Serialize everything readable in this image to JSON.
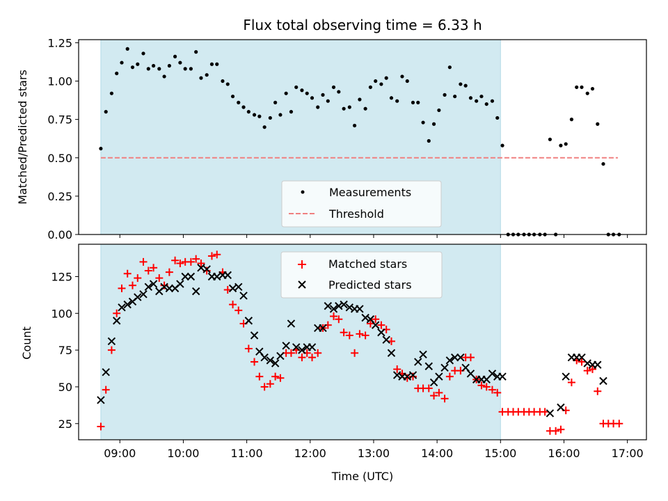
{
  "title": "Flux total observing time = 6.33 h",
  "colors": {
    "shade": "#add8e6",
    "threshold": "#f08080",
    "measurements": "#000000",
    "matched": "#ff0000",
    "predicted": "#000000"
  },
  "chart_data": [
    {
      "type": "scatter",
      "title": "Flux total observing time = 6.33 h",
      "xlabel": "",
      "ylabel": "Matched/Predicted stars",
      "x_unit": "hours UTC",
      "xlim": [
        8.35,
        17.3
      ],
      "ylim": [
        0,
        1.27
      ],
      "yticks": [
        0.0,
        0.25,
        0.5,
        0.75,
        1.0,
        1.25
      ],
      "ytick_labels": [
        "0.00",
        "0.25",
        "0.50",
        "0.75",
        "1.00",
        "1.25"
      ],
      "xticks": [
        9,
        10,
        11,
        12,
        13,
        14,
        15,
        16,
        17
      ],
      "shaded_span": [
        8.7,
        15.0
      ],
      "legend": {
        "position": "lower center",
        "entries": [
          "Measurements",
          "Threshold"
        ]
      },
      "threshold": {
        "name": "Threshold",
        "x": [
          8.7,
          16.85
        ],
        "y": 0.5
      },
      "series": [
        {
          "name": "Measurements",
          "x": [
            8.7,
            8.78,
            8.87,
            8.95,
            9.03,
            9.12,
            9.2,
            9.28,
            9.37,
            9.45,
            9.53,
            9.62,
            9.7,
            9.78,
            9.87,
            9.95,
            10.03,
            10.12,
            10.2,
            10.28,
            10.37,
            10.45,
            10.53,
            10.62,
            10.7,
            10.78,
            10.87,
            10.95,
            11.03,
            11.12,
            11.2,
            11.28,
            11.37,
            11.45,
            11.53,
            11.62,
            11.7,
            11.78,
            11.87,
            11.95,
            12.03,
            12.12,
            12.2,
            12.28,
            12.37,
            12.45,
            12.53,
            12.62,
            12.7,
            12.78,
            12.87,
            12.95,
            13.03,
            13.12,
            13.2,
            13.28,
            13.37,
            13.45,
            13.53,
            13.62,
            13.7,
            13.78,
            13.87,
            13.95,
            14.03,
            14.12,
            14.2,
            14.28,
            14.37,
            14.45,
            14.53,
            14.62,
            14.7,
            14.78,
            14.87,
            14.95,
            15.03,
            15.12,
            15.2,
            15.28,
            15.37,
            15.45,
            15.53,
            15.62,
            15.7,
            15.78,
            15.87,
            15.95,
            16.03,
            16.12,
            16.2,
            16.28,
            16.37,
            16.45,
            16.53,
            16.62,
            16.7,
            16.78,
            16.87
          ],
          "y": [
            0.56,
            0.8,
            0.92,
            1.05,
            1.12,
            1.21,
            1.09,
            1.11,
            1.18,
            1.08,
            1.1,
            1.08,
            1.03,
            1.1,
            1.16,
            1.12,
            1.08,
            1.08,
            1.19,
            1.02,
            1.04,
            1.11,
            1.11,
            1.0,
            0.98,
            0.9,
            0.86,
            0.83,
            0.8,
            0.78,
            0.77,
            0.7,
            0.76,
            0.86,
            0.78,
            0.92,
            0.8,
            0.96,
            0.94,
            0.92,
            0.89,
            0.83,
            0.91,
            0.87,
            0.96,
            0.93,
            0.82,
            0.83,
            0.71,
            0.88,
            0.82,
            0.96,
            1.0,
            0.98,
            1.02,
            0.89,
            0.87,
            1.03,
            1.0,
            0.86,
            0.86,
            0.73,
            0.61,
            0.72,
            0.81,
            0.91,
            1.09,
            0.9,
            0.98,
            0.97,
            0.89,
            0.87,
            0.9,
            0.85,
            0.87,
            0.76,
            0.58,
            0.0,
            0.0,
            0.0,
            0.0,
            0.0,
            0.0,
            0.0,
            0.0,
            0.62,
            0.0,
            0.58,
            0.59,
            0.75,
            0.96,
            0.96,
            0.92,
            0.95,
            0.72,
            0.46,
            0.0,
            0.0,
            0.0
          ]
        }
      ]
    },
    {
      "type": "scatter",
      "title": "",
      "xlabel": "Time (UTC)",
      "ylabel": "Count",
      "x_unit": "hours UTC",
      "xlim": [
        8.35,
        17.3
      ],
      "ylim": [
        14,
        147
      ],
      "yticks": [
        25,
        50,
        75,
        100,
        125
      ],
      "ytick_labels": [
        "25",
        "50",
        "75",
        "100",
        "125"
      ],
      "xticks": [
        9,
        10,
        11,
        12,
        13,
        14,
        15,
        16,
        17
      ],
      "xtick_labels": [
        "09:00",
        "10:00",
        "11:00",
        "12:00",
        "13:00",
        "14:00",
        "15:00",
        "16:00",
        "17:00"
      ],
      "shaded_span": [
        8.7,
        15.0
      ],
      "legend": {
        "position": "upper center",
        "entries": [
          "Matched stars",
          "Predicted stars"
        ]
      },
      "series": [
        {
          "name": "Matched stars",
          "marker": "+",
          "x": [
            8.7,
            8.78,
            8.87,
            8.95,
            9.03,
            9.12,
            9.2,
            9.28,
            9.37,
            9.45,
            9.53,
            9.62,
            9.7,
            9.78,
            9.87,
            9.95,
            10.03,
            10.12,
            10.2,
            10.28,
            10.37,
            10.45,
            10.53,
            10.62,
            10.7,
            10.78,
            10.87,
            10.95,
            11.03,
            11.12,
            11.2,
            11.28,
            11.37,
            11.45,
            11.53,
            11.62,
            11.7,
            11.78,
            11.87,
            11.95,
            12.03,
            12.12,
            12.2,
            12.28,
            12.37,
            12.45,
            12.53,
            12.62,
            12.7,
            12.78,
            12.87,
            12.95,
            13.03,
            13.12,
            13.2,
            13.28,
            13.37,
            13.45,
            13.53,
            13.62,
            13.7,
            13.78,
            13.87,
            13.95,
            14.03,
            14.12,
            14.2,
            14.28,
            14.37,
            14.45,
            14.53,
            14.62,
            14.7,
            14.78,
            14.87,
            14.95,
            15.03,
            15.12,
            15.2,
            15.28,
            15.37,
            15.45,
            15.53,
            15.62,
            15.7,
            15.78,
            15.87,
            15.95,
            16.03,
            16.12,
            16.2,
            16.28,
            16.37,
            16.45,
            16.53,
            16.62,
            16.7,
            16.78,
            16.87
          ],
          "y": [
            23,
            48,
            75,
            100,
            117,
            127,
            119,
            124,
            135,
            129,
            131,
            124,
            119,
            128,
            136,
            134,
            135,
            135,
            137,
            134,
            129,
            139,
            140,
            128,
            116,
            106,
            102,
            93,
            76,
            67,
            57,
            50,
            52,
            57,
            56,
            73,
            73,
            75,
            70,
            73,
            70,
            73,
            90,
            92,
            98,
            96,
            87,
            85,
            73,
            86,
            85,
            93,
            96,
            92,
            89,
            81,
            62,
            59,
            56,
            57,
            49,
            49,
            49,
            44,
            46,
            42,
            57,
            61,
            61,
            70,
            70,
            55,
            51,
            50,
            48,
            46,
            33,
            33,
            33,
            33,
            33,
            33,
            33,
            33,
            33,
            20,
            20,
            21,
            34,
            53,
            68,
            67,
            61,
            62,
            47,
            25,
            25,
            25,
            25
          ]
        },
        {
          "name": "Predicted stars",
          "marker": "x",
          "x": [
            8.7,
            8.78,
            8.87,
            8.95,
            9.03,
            9.12,
            9.2,
            9.28,
            9.37,
            9.45,
            9.53,
            9.62,
            9.7,
            9.78,
            9.87,
            9.95,
            10.03,
            10.12,
            10.2,
            10.28,
            10.37,
            10.45,
            10.53,
            10.62,
            10.7,
            10.78,
            10.87,
            10.95,
            11.03,
            11.12,
            11.2,
            11.28,
            11.37,
            11.45,
            11.53,
            11.62,
            11.7,
            11.78,
            11.87,
            11.95,
            12.03,
            12.12,
            12.2,
            12.28,
            12.37,
            12.45,
            12.53,
            12.62,
            12.7,
            12.78,
            12.87,
            12.95,
            13.03,
            13.12,
            13.2,
            13.28,
            13.37,
            13.45,
            13.53,
            13.62,
            13.7,
            13.78,
            13.87,
            13.95,
            14.03,
            14.12,
            14.2,
            14.28,
            14.37,
            14.45,
            14.53,
            14.62,
            14.7,
            14.78,
            14.87,
            14.95,
            15.03,
            15.78,
            15.95,
            16.03,
            16.12,
            16.2,
            16.28,
            16.37,
            16.45,
            16.53,
            16.62
          ],
          "y": [
            41,
            60,
            81,
            95,
            104,
            106,
            108,
            111,
            113,
            118,
            120,
            115,
            118,
            117,
            117,
            120,
            125,
            125,
            115,
            131,
            130,
            125,
            125,
            126,
            126,
            117,
            118,
            112,
            95,
            85,
            74,
            70,
            68,
            66,
            71,
            78,
            93,
            77,
            75,
            77,
            77,
            90,
            90,
            105,
            103,
            105,
            106,
            104,
            103,
            103,
            97,
            96,
            92,
            87,
            82,
            73,
            58,
            57,
            57,
            58,
            67,
            72,
            64,
            53,
            57,
            63,
            68,
            70,
            70,
            63,
            59,
            55,
            55,
            55,
            59,
            57,
            57,
            32,
            36,
            57,
            70,
            70,
            70,
            66,
            65,
            65,
            54
          ]
        }
      ]
    }
  ]
}
